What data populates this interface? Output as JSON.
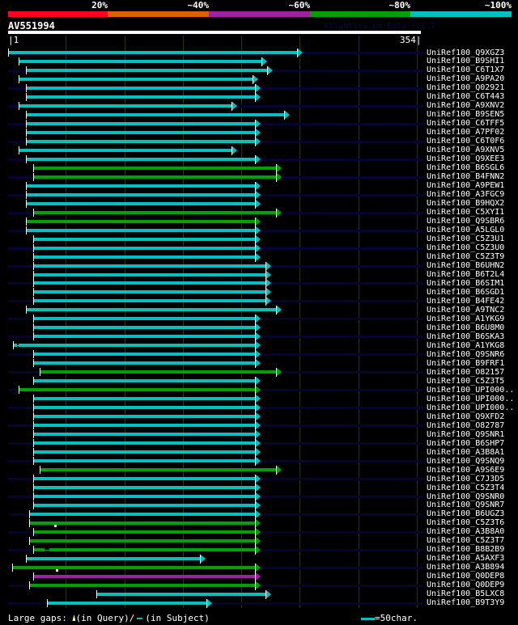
{
  "identity_scale": [
    {
      "label": "20%",
      "color": "#ff0022"
    },
    {
      "label": "~40%",
      "color": "#e06000"
    },
    {
      "label": "~60%",
      "color": "#a020a0"
    },
    {
      "label": "~80%",
      "color": "#00a000"
    },
    {
      "label": "~100%",
      "color": "#00c0c0"
    }
  ],
  "query": {
    "id": "AV551994",
    "start": "|1",
    "end": "354|",
    "length": 354
  },
  "watermark": "AlignView.pm Beta rel.7",
  "hits": [
    {
      "name": "UniRef100_Q9XGZ3",
      "start": 1,
      "end": 248,
      "color": "#00c0c0"
    },
    {
      "name": "UniRef100_B9SHI1",
      "start": 10,
      "end": 217,
      "color": "#00c0c0"
    },
    {
      "name": "UniRef100_C6T1X7",
      "start": 16,
      "end": 222,
      "color": "#00c0c0"
    },
    {
      "name": "UniRef100_A9PA20",
      "start": 10,
      "end": 210,
      "color": "#00c0c0"
    },
    {
      "name": "UniRef100_Q02921",
      "start": 16,
      "end": 212,
      "color": "#00c0c0"
    },
    {
      "name": "UniRef100_C6T443",
      "start": 16,
      "end": 212,
      "color": "#00c0c0"
    },
    {
      "name": "UniRef100_A9XNV2",
      "start": 10,
      "end": 192,
      "color": "#00c0c0"
    },
    {
      "name": "UniRef100_B9SEN5",
      "start": 16,
      "end": 237,
      "color": "#00c0c0"
    },
    {
      "name": "UniRef100_C6TFF5",
      "start": 16,
      "end": 212,
      "color": "#00c0c0"
    },
    {
      "name": "UniRef100_A7PF02",
      "start": 16,
      "end": 212,
      "color": "#00c0c0"
    },
    {
      "name": "UniRef100_C6T0F6",
      "start": 16,
      "end": 212,
      "color": "#00c0c0"
    },
    {
      "name": "UniRef100_A9XNV5",
      "start": 10,
      "end": 192,
      "color": "#00c0c0"
    },
    {
      "name": "UniRef100_Q9XEE3",
      "start": 16,
      "end": 212,
      "color": "#00c0c0"
    },
    {
      "name": "UniRef100_B6SGL6",
      "start": 22,
      "end": 230,
      "color": "#00a000"
    },
    {
      "name": "UniRef100_B4FNN2",
      "start": 22,
      "end": 230,
      "color": "#00a000"
    },
    {
      "name": "UniRef100_A9PEW1",
      "start": 16,
      "end": 212,
      "color": "#00c0c0"
    },
    {
      "name": "UniRef100_A3FGC9",
      "start": 16,
      "end": 212,
      "color": "#00c0c0"
    },
    {
      "name": "UniRef100_B9HQX2",
      "start": 16,
      "end": 212,
      "color": "#00c0c0"
    },
    {
      "name": "UniRef100_C5XYI1",
      "start": 22,
      "end": 230,
      "color": "#00a000"
    },
    {
      "name": "UniRef100_Q9SBR6",
      "start": 16,
      "end": 212,
      "color": "#00a000"
    },
    {
      "name": "UniRef100_A5LGL0",
      "start": 16,
      "end": 212,
      "color": "#00c0c0"
    },
    {
      "name": "UniRef100_C5Z3U1",
      "start": 22,
      "end": 212,
      "color": "#00c0c0"
    },
    {
      "name": "UniRef100_C5Z3U0",
      "start": 22,
      "end": 212,
      "color": "#00c0c0"
    },
    {
      "name": "UniRef100_C5Z3T9",
      "start": 22,
      "end": 212,
      "color": "#00c0c0"
    },
    {
      "name": "UniRef100_B6UHN2",
      "start": 22,
      "end": 221,
      "color": "#00c0c0"
    },
    {
      "name": "UniRef100_B6T2L4",
      "start": 22,
      "end": 221,
      "color": "#00c0c0"
    },
    {
      "name": "UniRef100_B6SIM1",
      "start": 22,
      "end": 221,
      "color": "#00c0c0"
    },
    {
      "name": "UniRef100_B6SGD1",
      "start": 22,
      "end": 221,
      "color": "#00c0c0"
    },
    {
      "name": "UniRef100_B4FE42",
      "start": 22,
      "end": 221,
      "color": "#00c0c0"
    },
    {
      "name": "UniRef100_A9TNC2",
      "start": 16,
      "end": 230,
      "color": "#00c0c0"
    },
    {
      "name": "UniRef100_A1YKG9",
      "start": 22,
      "end": 212,
      "color": "#00c0c0"
    },
    {
      "name": "UniRef100_B6U8M0",
      "start": 22,
      "end": 212,
      "color": "#00c0c0"
    },
    {
      "name": "UniRef100_B6SKA3",
      "start": 22,
      "end": 212,
      "color": "#00c0c0"
    },
    {
      "name": "UniRef100_A1YKG8",
      "start": 5,
      "end": 212,
      "color": "#00c0c0",
      "subject_gap": [
        8,
        10
      ]
    },
    {
      "name": "UniRef100_Q9SNR6",
      "start": 22,
      "end": 212,
      "color": "#00c0c0"
    },
    {
      "name": "UniRef100_B9FRF1",
      "start": 22,
      "end": 212,
      "color": "#00c0c0"
    },
    {
      "name": "UniRef100_O82157",
      "start": 28,
      "end": 230,
      "color": "#00a000"
    },
    {
      "name": "UniRef100_C5Z3T5",
      "start": 22,
      "end": 212,
      "color": "#00c0c0"
    },
    {
      "name": "UniRef100_UPI000..",
      "start": 10,
      "end": 212,
      "color": "#00a000"
    },
    {
      "name": "UniRef100_UPI000..",
      "start": 22,
      "end": 212,
      "color": "#00c0c0"
    },
    {
      "name": "UniRef100_UPI000..",
      "start": 22,
      "end": 212,
      "color": "#00c0c0"
    },
    {
      "name": "UniRef100_Q9XFD2",
      "start": 22,
      "end": 212,
      "color": "#00c0c0"
    },
    {
      "name": "UniRef100_O82787",
      "start": 22,
      "end": 212,
      "color": "#00c0c0"
    },
    {
      "name": "UniRef100_Q9SNR1",
      "start": 22,
      "end": 212,
      "color": "#00c0c0"
    },
    {
      "name": "UniRef100_B6SHP7",
      "start": 22,
      "end": 212,
      "color": "#00c0c0"
    },
    {
      "name": "UniRef100_A3B8A1",
      "start": 22,
      "end": 212,
      "color": "#00c0c0"
    },
    {
      "name": "UniRef100_Q9SNQ9",
      "start": 22,
      "end": 212,
      "color": "#00c0c0"
    },
    {
      "name": "UniRef100_A9S6E9",
      "start": 28,
      "end": 230,
      "color": "#00a000"
    },
    {
      "name": "UniRef100_C7J3D5",
      "start": 22,
      "end": 212,
      "color": "#00c0c0"
    },
    {
      "name": "UniRef100_C5Z3T4",
      "start": 22,
      "end": 212,
      "color": "#00c0c0"
    },
    {
      "name": "UniRef100_Q9SNR0",
      "start": 22,
      "end": 212,
      "color": "#00c0c0"
    },
    {
      "name": "UniRef100_Q9SNR7",
      "start": 22,
      "end": 212,
      "color": "#00c0c0"
    },
    {
      "name": "UniRef100_B6UGZ3",
      "start": 19,
      "end": 212,
      "color": "#00c0c0"
    },
    {
      "name": "UniRef100_C5Z3T6",
      "start": 19,
      "end": 212,
      "color": "#00a000"
    },
    {
      "name": "UniRef100_A3B8A0",
      "start": 22,
      "end": 212,
      "color": "#00a000",
      "query_gap": 41
    },
    {
      "name": "UniRef100_C5Z3T7",
      "start": 19,
      "end": 212,
      "color": "#00a000"
    },
    {
      "name": "UniRef100_B8B2B9",
      "start": 22,
      "end": 212,
      "color": "#00a000",
      "subject_gap": [
        32,
        36
      ]
    },
    {
      "name": "UniRef100_A5AXF3",
      "start": 16,
      "end": 165,
      "color": "#00c0c0"
    },
    {
      "name": "UniRef100_A3B894",
      "start": 4,
      "end": 212,
      "color": "#00a000"
    },
    {
      "name": "UniRef100_Q0DEP8",
      "start": 22,
      "end": 212,
      "color": "#a020a0",
      "query_gap": 42
    },
    {
      "name": "UniRef100_Q0DEP9",
      "start": 19,
      "end": 212,
      "color": "#00a000"
    },
    {
      "name": "UniRef100_B5LXC8",
      "start": 76,
      "end": 221,
      "color": "#00c0c0"
    },
    {
      "name": "UniRef100_B9T3Y9",
      "start": 34,
      "end": 170,
      "color": "#00c0c0"
    }
  ],
  "legend": {
    "prefix": "Large gaps:",
    "query_gap": "(in Query)/",
    "subject_gap": "(in Subject)",
    "scale_label": "=50char.",
    "scale_color": "#00c0c0"
  }
}
